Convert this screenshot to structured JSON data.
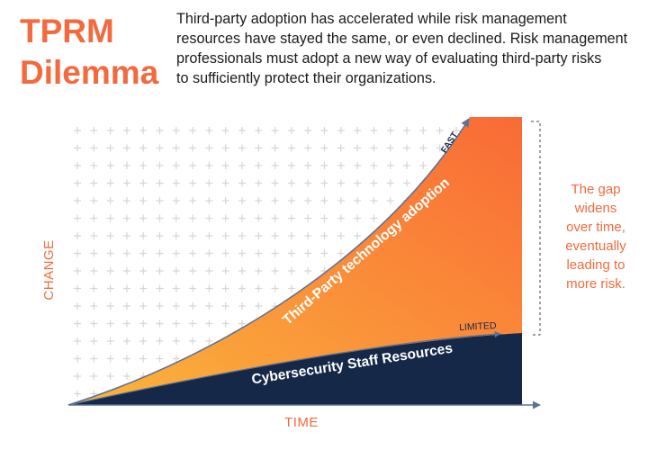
{
  "heading": {
    "line1": "TPRM",
    "line2": "Dilemma"
  },
  "intro": {
    "lines": [
      "Third-party adoption has accelerated while risk management",
      "resources have stayed the same, or even declined. Risk management",
      "professionals must adopt a new way of evaluating third-party risks",
      "to sufficiently protect their organizations."
    ]
  },
  "diagram": {
    "y_axis_label": "CHANGE",
    "x_axis_label": "TIME",
    "adoption_curve_label": "Third-Party technology adoption",
    "adoption_end_label": "FAST",
    "resources_curve_label": "Cybersecurity Staff Resources",
    "resources_end_label": "LIMITED",
    "gap_note": [
      "The gap",
      "widens",
      "over time,",
      "eventually",
      "leading to",
      "more risk."
    ],
    "colors": {
      "accent": "#f26a3d",
      "adoption_fill_start": "#fbb53c",
      "adoption_fill_end": "#f96a36",
      "resources_fill": "#152848",
      "axis": "#5e7293",
      "grid": "#d6d6d6",
      "bracket": "#444444"
    }
  }
}
